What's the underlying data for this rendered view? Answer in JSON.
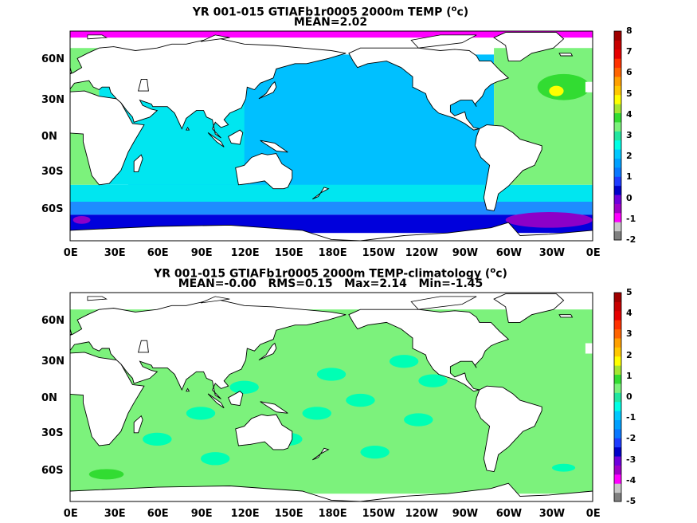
{
  "panels": [
    {
      "title": "YR 001-015 GTIAFb1r0005 2000m TEMP (",
      "title_sup": "o",
      "title_tail": "c)",
      "subtitle": "MEAN=2.02",
      "lat_labels": [
        "60N",
        "30N",
        "0N",
        "30S",
        "60S"
      ],
      "lon_labels": [
        "0E",
        "30E",
        "60E",
        "90E",
        "120E",
        "150E",
        "180E",
        "150W",
        "120W",
        "90W",
        "60W",
        "30W",
        "0E"
      ],
      "colorbar_labels": [
        "8",
        "7",
        "6",
        "5",
        "4",
        "3",
        "2",
        "1",
        "0",
        "-1",
        "-2"
      ]
    },
    {
      "title": "YR 001-015 GTIAFb1r0005 2000m TEMP-climatology (",
      "title_sup": "o",
      "title_tail": "c)",
      "subtitle": "MEAN=-0.00   RMS=0.15   Max=2.14   Min=-1.45",
      "lat_labels": [
        "60N",
        "30N",
        "0N",
        "30S",
        "60S"
      ],
      "lon_labels": [
        "0E",
        "30E",
        "60E",
        "90E",
        "120E",
        "150E",
        "180E",
        "150W",
        "120W",
        "90W",
        "60W",
        "30W",
        "0E"
      ],
      "colorbar_labels": [
        "5",
        "4",
        "3",
        "2",
        "1",
        "0",
        "-1",
        "-2",
        "-3",
        "-4",
        "-5"
      ]
    }
  ],
  "colorbar_colors": [
    "#7f7f7f",
    "#c8c8c8",
    "#ff00ff",
    "#a000c8",
    "#6e00dc",
    "#0000c8",
    "#1e3cff",
    "#0a78ff",
    "#00a0ff",
    "#00c8ff",
    "#00ffe6",
    "#22e6a0",
    "#7cf27c",
    "#32dc32",
    "#a5e632",
    "#ffff00",
    "#ffc800",
    "#ffa000",
    "#ff6400",
    "#ff3200",
    "#e60000",
    "#c80000",
    "#a00000"
  ],
  "palette": {
    "land": "#ffffff",
    "coast": "#000000",
    "top_ocean": "#00c0ff",
    "top_cyan": "#00e6f0",
    "top_south": "#1e8cff",
    "top_deep": "#0000dc",
    "top_purple": "#8c00c8",
    "top_arctic": "#ff00ff",
    "top_atlantic": "#7cf27c",
    "top_atl_green": "#32dc32",
    "top_yellow": "#ffff00",
    "bot_ocean": "#7cf27c",
    "bot_cyan": "#00ffb4",
    "bot_green": "#32dc32"
  }
}
